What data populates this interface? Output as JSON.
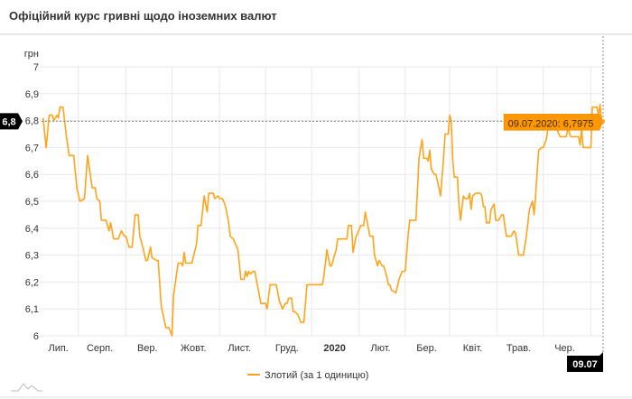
{
  "header": {
    "title": "Офіційний курс гривні щодо іноземних валют"
  },
  "colors": {
    "series": "#ffa31a",
    "tooltip_bg": "#ff9800",
    "crosshair_label_bg": "#000000",
    "grid": "#e8e8e8"
  },
  "logo_icon": "chart-mountains-icon",
  "chart_data": {
    "type": "line",
    "title": "Офіційний курс гривні щодо іноземних валют",
    "ylabel": "грн",
    "xlabel": "",
    "ylim": [
      6,
      7
    ],
    "yticks": [
      "6",
      "6,1",
      "6,2",
      "6,3",
      "6,4",
      "6,5",
      "6,6",
      "6,7",
      "6,8",
      "6,9",
      "7"
    ],
    "x_start": "09.07.2019",
    "x_end": "09.07.2020",
    "x_unit": "days since 09.07.2019",
    "xlim": [
      0,
      366
    ],
    "xticks": [
      {
        "label": "Лип.",
        "day": 11,
        "bold": false
      },
      {
        "label": "Серп.",
        "day": 38,
        "bold": false
      },
      {
        "label": "Вер.",
        "day": 69,
        "bold": false
      },
      {
        "label": "Жовт.",
        "day": 99,
        "bold": false
      },
      {
        "label": "Лист.",
        "day": 129,
        "bold": false
      },
      {
        "label": "Груд.",
        "day": 160,
        "bold": false
      },
      {
        "label": "2020",
        "day": 191,
        "bold": true
      },
      {
        "label": "Лют.",
        "day": 221,
        "bold": false
      },
      {
        "label": "Бер.",
        "day": 251,
        "bold": false
      },
      {
        "label": "Квіт.",
        "day": 281,
        "bold": false
      },
      {
        "label": "Трав.",
        "day": 311,
        "bold": false
      },
      {
        "label": "Чер.",
        "day": 341,
        "bold": false
      }
    ],
    "month_boundaries": [
      24,
      55,
      85,
      116,
      146,
      176,
      207,
      237,
      266,
      297,
      327,
      358
    ],
    "grid": true,
    "legend": {
      "position": "bottom-center",
      "entries": [
        "Злотий (за 1 одиницю)"
      ]
    },
    "series": [
      {
        "name": "Злотий (за 1 одиницю)",
        "points": [
          [
            1,
            6.81
          ],
          [
            3,
            6.7
          ],
          [
            5,
            6.82
          ],
          [
            7,
            6.82
          ],
          [
            8,
            6.8
          ],
          [
            10,
            6.82
          ],
          [
            11,
            6.81
          ],
          [
            12,
            6.85
          ],
          [
            14,
            6.85
          ],
          [
            16,
            6.75
          ],
          [
            18,
            6.67
          ],
          [
            21,
            6.67
          ],
          [
            23,
            6.55
          ],
          [
            25,
            6.5
          ],
          [
            28,
            6.51
          ],
          [
            30,
            6.67
          ],
          [
            33,
            6.55
          ],
          [
            35,
            6.55
          ],
          [
            36,
            6.51
          ],
          [
            38,
            6.5
          ],
          [
            39,
            6.43
          ],
          [
            42,
            6.43
          ],
          [
            44,
            6.39
          ],
          [
            45,
            6.42
          ],
          [
            47,
            6.36
          ],
          [
            50,
            6.36
          ],
          [
            52,
            6.39
          ],
          [
            54,
            6.37
          ],
          [
            55,
            6.37
          ],
          [
            57,
            6.33
          ],
          [
            59,
            6.33
          ],
          [
            61,
            6.45
          ],
          [
            63,
            6.45
          ],
          [
            64,
            6.37
          ],
          [
            66,
            6.33
          ],
          [
            68,
            6.28
          ],
          [
            69,
            6.28
          ],
          [
            71,
            6.33
          ],
          [
            72,
            6.29
          ],
          [
            75,
            6.28
          ],
          [
            76,
            6.28
          ],
          [
            78,
            6.11
          ],
          [
            81,
            6.03
          ],
          [
            83,
            6.03
          ],
          [
            85,
            6.0
          ],
          [
            86,
            6.15
          ],
          [
            89,
            6.27
          ],
          [
            91,
            6.27
          ],
          [
            92,
            6.26
          ],
          [
            93,
            6.31
          ],
          [
            94,
            6.27
          ],
          [
            98,
            6.27
          ],
          [
            101,
            6.34
          ],
          [
            102,
            6.41
          ],
          [
            104,
            6.41
          ],
          [
            106,
            6.52
          ],
          [
            108,
            6.46
          ],
          [
            109,
            6.53
          ],
          [
            112,
            6.53
          ],
          [
            113,
            6.51
          ],
          [
            115,
            6.52
          ],
          [
            116,
            6.51
          ],
          [
            118,
            6.51
          ],
          [
            120,
            6.48
          ],
          [
            122,
            6.42
          ],
          [
            123,
            6.37
          ],
          [
            125,
            6.36
          ],
          [
            128,
            6.32
          ],
          [
            130,
            6.21
          ],
          [
            132,
            6.21
          ],
          [
            133,
            6.24
          ],
          [
            134,
            6.22
          ],
          [
            135,
            6.24
          ],
          [
            136,
            6.23
          ],
          [
            138,
            6.24
          ],
          [
            139,
            6.24
          ],
          [
            142,
            6.15
          ],
          [
            143,
            6.12
          ],
          [
            146,
            6.12
          ],
          [
            147,
            6.1
          ],
          [
            149,
            6.19
          ],
          [
            151,
            6.19
          ],
          [
            153,
            6.19
          ],
          [
            155,
            6.13
          ],
          [
            157,
            6.1
          ],
          [
            159,
            6.12
          ],
          [
            160,
            6.12
          ],
          [
            161,
            6.14
          ],
          [
            163,
            6.14
          ],
          [
            164,
            6.09
          ],
          [
            165,
            6.09
          ],
          [
            167,
            6.08
          ],
          [
            169,
            6.05
          ],
          [
            171,
            6.05
          ],
          [
            173,
            6.19
          ],
          [
            183,
            6.19
          ],
          [
            184,
            6.22
          ],
          [
            186,
            6.32
          ],
          [
            188,
            6.26
          ],
          [
            189,
            6.26
          ],
          [
            192,
            6.32
          ],
          [
            193,
            6.36
          ],
          [
            198,
            6.36
          ],
          [
            199,
            6.36
          ],
          [
            200,
            6.41
          ],
          [
            202,
            6.41
          ],
          [
            203,
            6.31
          ],
          [
            205,
            6.37
          ],
          [
            206,
            6.38
          ],
          [
            208,
            6.41
          ],
          [
            210,
            6.41
          ],
          [
            211,
            6.46
          ],
          [
            212,
            6.43
          ],
          [
            214,
            6.37
          ],
          [
            216,
            6.37
          ],
          [
            217,
            6.3
          ],
          [
            219,
            6.26
          ],
          [
            220,
            6.28
          ],
          [
            222,
            6.26
          ],
          [
            223,
            6.26
          ],
          [
            225,
            6.22
          ],
          [
            226,
            6.19
          ],
          [
            227,
            6.19
          ],
          [
            228,
            6.17
          ],
          [
            231,
            6.16
          ],
          [
            233,
            6.21
          ],
          [
            235,
            6.24
          ],
          [
            237,
            6.24
          ],
          [
            239,
            6.38
          ],
          [
            240,
            6.43
          ],
          [
            244,
            6.43
          ],
          [
            246,
            6.66
          ],
          [
            248,
            6.73
          ],
          [
            249,
            6.66
          ],
          [
            251,
            6.66
          ],
          [
            252,
            6.65
          ],
          [
            253,
            6.69
          ],
          [
            254,
            6.62
          ],
          [
            256,
            6.6
          ],
          [
            257,
            6.6
          ],
          [
            259,
            6.55
          ],
          [
            260,
            6.52
          ],
          [
            262,
            6.66
          ],
          [
            263,
            6.75
          ],
          [
            265,
            6.75
          ],
          [
            266,
            6.82
          ],
          [
            267,
            6.8
          ],
          [
            268,
            6.65
          ],
          [
            269,
            6.59
          ],
          [
            271,
            6.59
          ],
          [
            272,
            6.49
          ],
          [
            273,
            6.43
          ],
          [
            275,
            6.52
          ],
          [
            276,
            6.51
          ],
          [
            278,
            6.51
          ],
          [
            279,
            6.53
          ],
          [
            280,
            6.47
          ],
          [
            281,
            6.52
          ],
          [
            283,
            6.53
          ],
          [
            286,
            6.53
          ],
          [
            287,
            6.52
          ],
          [
            288,
            6.48
          ],
          [
            289,
            6.48
          ],
          [
            290,
            6.42
          ],
          [
            292,
            6.42
          ],
          [
            293,
            6.47
          ],
          [
            295,
            6.49
          ],
          [
            296,
            6.43
          ],
          [
            298,
            6.43
          ],
          [
            300,
            6.45
          ],
          [
            301,
            6.45
          ],
          [
            303,
            6.37
          ],
          [
            306,
            6.37
          ],
          [
            308,
            6.39
          ],
          [
            309,
            6.38
          ],
          [
            311,
            6.3
          ],
          [
            314,
            6.3
          ],
          [
            316,
            6.37
          ],
          [
            318,
            6.47
          ],
          [
            320,
            6.5
          ],
          [
            321,
            6.45
          ],
          [
            322,
            6.52
          ],
          [
            324,
            6.69
          ],
          [
            326,
            6.7
          ],
          [
            327,
            6.7
          ],
          [
            329,
            6.73
          ],
          [
            330,
            6.77
          ],
          [
            333,
            6.79
          ],
          [
            335,
            6.78
          ],
          [
            338,
            6.74
          ],
          [
            342,
            6.74
          ],
          [
            343,
            6.77
          ],
          [
            345,
            6.74
          ],
          [
            350,
            6.74
          ],
          [
            351,
            6.71
          ],
          [
            352,
            6.77
          ],
          [
            353,
            6.7
          ],
          [
            358,
            6.7
          ],
          [
            359,
            6.85
          ],
          [
            362,
            6.85
          ],
          [
            363,
            6.82
          ],
          [
            364,
            6.86
          ],
          [
            365,
            6.8
          ],
          [
            366,
            6.7975
          ]
        ]
      }
    ],
    "tooltip": {
      "text": "09.07.2020: 6,7975",
      "day": 366,
      "value": 6.7975
    },
    "crosshair": {
      "y_label": "6,8",
      "x_label": "09.07"
    }
  }
}
